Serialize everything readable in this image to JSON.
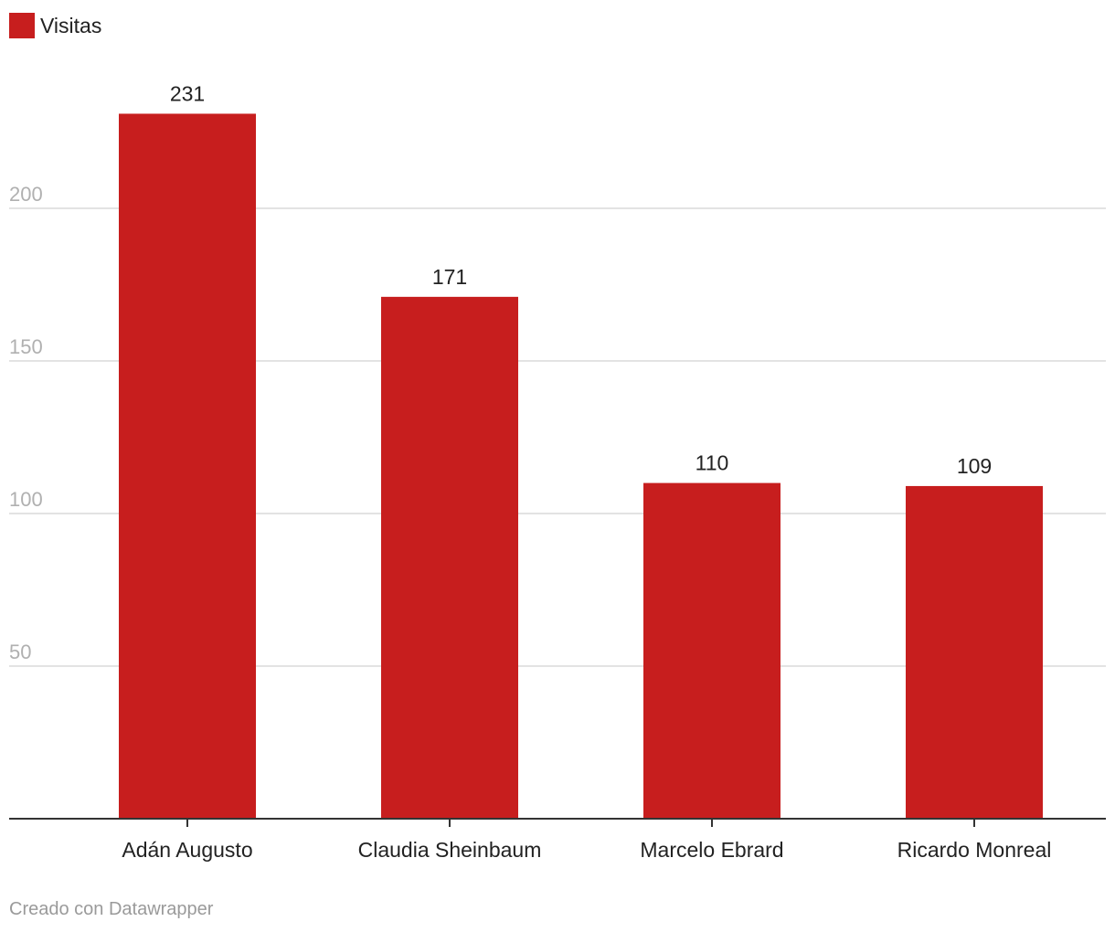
{
  "colors": {
    "bar": "#c71e1e",
    "grid": "#e3e3e3",
    "axis": "#333333",
    "tick_label": "#b0b0b0",
    "text": "#222222",
    "credit": "#9a9a9a"
  },
  "legend": {
    "label": "Visitas"
  },
  "chart_data": {
    "type": "bar",
    "categories": [
      "Adán Augusto",
      "Claudia Sheinbaum",
      "Marcelo Ebrard",
      "Ricardo Monreal"
    ],
    "series": [
      {
        "name": "Visitas",
        "values": [
          231,
          171,
          110,
          109
        ]
      }
    ],
    "yticks": [
      50,
      100,
      150,
      200
    ],
    "ylim": [
      0,
      250
    ],
    "grid": true,
    "legend_position": "top-left",
    "title": "",
    "xlabel": "",
    "ylabel": ""
  },
  "credit": "Creado con Datawrapper"
}
